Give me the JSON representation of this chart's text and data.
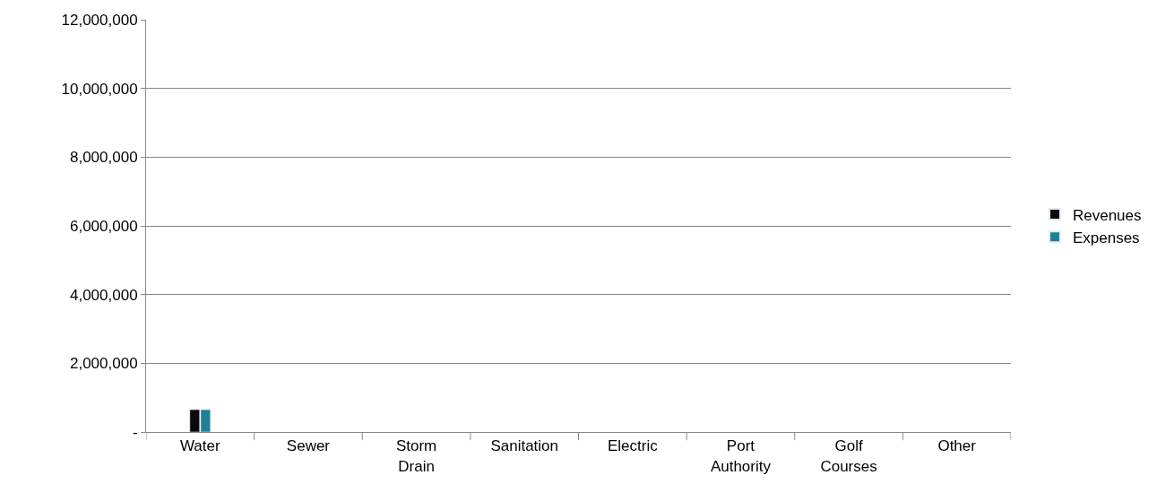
{
  "chart_data": {
    "type": "bar",
    "categories": [
      "Water",
      "Sewer",
      "Storm Drain",
      "Sanitation",
      "Electric",
      "Port Authority",
      "Golf Courses",
      "Other"
    ],
    "series": [
      {
        "name": "Revenues",
        "color": "#0a0a0a",
        "values": [
          650000,
          null,
          null,
          null,
          null,
          null,
          null,
          null
        ]
      },
      {
        "name": "Expenses",
        "color": "#1f7f99",
        "values": [
          650000,
          null,
          null,
          null,
          null,
          null,
          null,
          null
        ]
      }
    ],
    "ylim": [
      0,
      12000000
    ],
    "yticks": [
      {
        "value": 0,
        "label": "-"
      },
      {
        "value": 2000000,
        "label": "2,000,000"
      },
      {
        "value": 4000000,
        "label": "4,000,000"
      },
      {
        "value": 6000000,
        "label": "6,000,000"
      },
      {
        "value": 8000000,
        "label": "8,000,000"
      },
      {
        "value": 10000000,
        "label": "10,000,000"
      },
      {
        "value": 12000000,
        "label": "12,000,000"
      }
    ],
    "grid": "y",
    "legend": "right"
  }
}
